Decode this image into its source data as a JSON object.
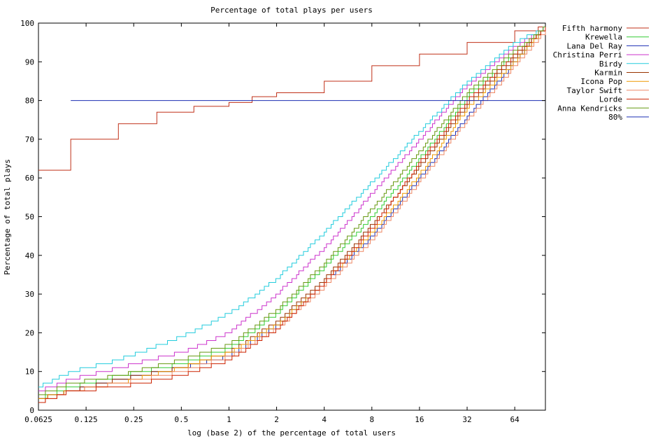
{
  "chart_data": {
    "type": "line",
    "title": "Percentage of total plays per users",
    "xlabel": "log (base 2) of the percentage of total users",
    "ylabel": "Percentage of total plays",
    "xscale": "log2",
    "xlim": [
      0.0625,
      100
    ],
    "ylim": [
      0,
      100
    ],
    "xticks": [
      "0.0625",
      "0.125",
      "0.25",
      "0.5",
      "1",
      "2",
      "4",
      "8",
      "16",
      "32",
      "64"
    ],
    "yticks": [
      "0",
      "10",
      "20",
      "30",
      "40",
      "50",
      "60",
      "70",
      "80",
      "90",
      "100"
    ],
    "grid": false,
    "legend": "outside-right",
    "series": [
      {
        "name": "Fifth harmony",
        "color": "#c03018",
        "steps": [
          [
            0.0625,
            62
          ],
          [
            0.1,
            70
          ],
          [
            0.2,
            74
          ],
          [
            0.35,
            77
          ],
          [
            0.6,
            78.5
          ],
          [
            1,
            79.5
          ],
          [
            1.4,
            81
          ],
          [
            2,
            82
          ],
          [
            4,
            85
          ],
          [
            8,
            89
          ],
          [
            16,
            92
          ],
          [
            32,
            95
          ],
          [
            64,
            98
          ],
          [
            90,
            99
          ],
          [
            100,
            99
          ]
        ]
      },
      {
        "name": "Krewella",
        "color": "#33cc33",
        "points": [
          [
            0.0625,
            3
          ],
          [
            0.1,
            6
          ],
          [
            0.2,
            9
          ],
          [
            0.5,
            12
          ],
          [
            1,
            16
          ],
          [
            2,
            25
          ],
          [
            4,
            37
          ],
          [
            8,
            50
          ],
          [
            16,
            65
          ],
          [
            32,
            81
          ],
          [
            64,
            92
          ],
          [
            100,
            99
          ]
        ]
      },
      {
        "name": "Lana Del Ray",
        "color": "#1a2db3",
        "points": [
          [
            0.0625,
            3
          ],
          [
            0.1,
            5
          ],
          [
            0.2,
            8
          ],
          [
            0.5,
            11
          ],
          [
            1,
            14
          ],
          [
            2,
            22
          ],
          [
            4,
            33
          ],
          [
            8,
            45
          ],
          [
            16,
            60
          ],
          [
            32,
            76
          ],
          [
            64,
            90
          ],
          [
            100,
            99
          ]
        ]
      },
      {
        "name": "Christina Perri",
        "color": "#cc33cc",
        "points": [
          [
            0.0625,
            5
          ],
          [
            0.1,
            8
          ],
          [
            0.2,
            11
          ],
          [
            0.5,
            15
          ],
          [
            1,
            20
          ],
          [
            2,
            30
          ],
          [
            4,
            42
          ],
          [
            8,
            56
          ],
          [
            16,
            70
          ],
          [
            32,
            84
          ],
          [
            64,
            94
          ],
          [
            100,
            99
          ]
        ]
      },
      {
        "name": "Birdy",
        "color": "#22ccdd",
        "points": [
          [
            0.0625,
            6
          ],
          [
            0.1,
            10
          ],
          [
            0.2,
            13
          ],
          [
            0.5,
            19
          ],
          [
            1,
            25
          ],
          [
            2,
            34
          ],
          [
            4,
            46
          ],
          [
            8,
            59
          ],
          [
            16,
            72
          ],
          [
            32,
            85
          ],
          [
            64,
            95
          ],
          [
            100,
            99
          ]
        ]
      },
      {
        "name": "Karmin",
        "color": "#993300",
        "points": [
          [
            0.0625,
            3
          ],
          [
            0.1,
            5
          ],
          [
            0.2,
            8
          ],
          [
            0.5,
            11
          ],
          [
            1,
            15
          ],
          [
            2,
            23
          ],
          [
            4,
            34
          ],
          [
            8,
            48
          ],
          [
            16,
            63
          ],
          [
            32,
            79
          ],
          [
            64,
            91
          ],
          [
            100,
            99
          ]
        ]
      },
      {
        "name": "Icona Pop",
        "color": "#ee9900",
        "points": [
          [
            0.0625,
            3
          ],
          [
            0.1,
            5
          ],
          [
            0.2,
            7
          ],
          [
            0.5,
            11
          ],
          [
            1,
            15
          ],
          [
            2,
            22
          ],
          [
            4,
            33
          ],
          [
            8,
            46
          ],
          [
            16,
            61
          ],
          [
            32,
            78
          ],
          [
            64,
            90
          ],
          [
            100,
            99
          ]
        ]
      },
      {
        "name": "Taylor Swift",
        "color": "#ee8866",
        "points": [
          [
            0.0625,
            2
          ],
          [
            0.1,
            5
          ],
          [
            0.2,
            7
          ],
          [
            0.5,
            10
          ],
          [
            1,
            14
          ],
          [
            2,
            21
          ],
          [
            4,
            32
          ],
          [
            8,
            44
          ],
          [
            16,
            59
          ],
          [
            32,
            75
          ],
          [
            64,
            89
          ],
          [
            100,
            98
          ]
        ]
      },
      {
        "name": "Lorde",
        "color": "#cc2200",
        "points": [
          [
            0.0625,
            2
          ],
          [
            0.1,
            5
          ],
          [
            0.2,
            6
          ],
          [
            0.5,
            9
          ],
          [
            1,
            13
          ],
          [
            2,
            21
          ],
          [
            4,
            33
          ],
          [
            8,
            47
          ],
          [
            16,
            64
          ],
          [
            32,
            80
          ],
          [
            64,
            92
          ],
          [
            100,
            99
          ]
        ]
      },
      {
        "name": "Anna Kendricks",
        "color": "#669911",
        "points": [
          [
            0.0625,
            4
          ],
          [
            0.1,
            7
          ],
          [
            0.2,
            9
          ],
          [
            0.5,
            13
          ],
          [
            1,
            17
          ],
          [
            2,
            26
          ],
          [
            4,
            38
          ],
          [
            8,
            52
          ],
          [
            16,
            67
          ],
          [
            32,
            82
          ],
          [
            64,
            93
          ],
          [
            100,
            99
          ]
        ]
      },
      {
        "name": "80%",
        "color": "#1a2db3",
        "points": [
          [
            0.1,
            80
          ],
          [
            100,
            80
          ]
        ]
      }
    ]
  }
}
